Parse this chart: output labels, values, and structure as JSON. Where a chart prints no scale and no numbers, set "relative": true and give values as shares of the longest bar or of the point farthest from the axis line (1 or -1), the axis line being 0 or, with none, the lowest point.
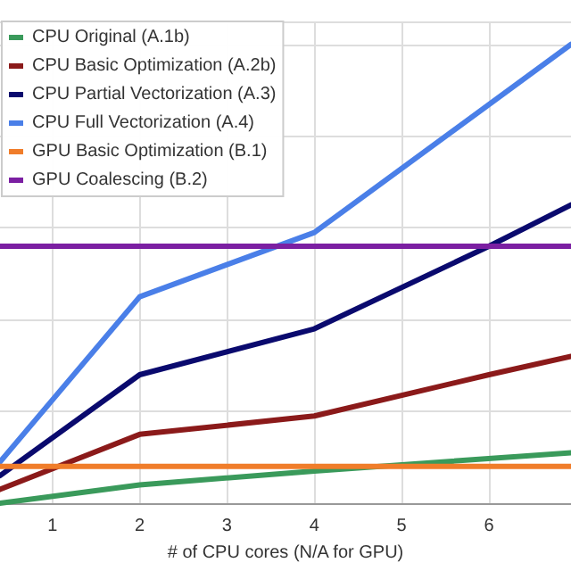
{
  "chart_data": {
    "type": "line",
    "xlabel": "# of CPU cores (N/A for GPU)",
    "relative": true,
    "xlim": [
      0.4,
      6.94
    ],
    "xticks": [
      1,
      2,
      3,
      4,
      5,
      6
    ],
    "grid": true,
    "legend": "top left",
    "marker": "none",
    "line_style": "solid",
    "series": [
      {
        "name": "CPU Original (A.1b)",
        "color": "#3a9a5b",
        "x": [
          0.4,
          2,
          4,
          6.94
        ],
        "values": [
          0,
          0.04,
          0.07,
          0.11
        ]
      },
      {
        "name": "CPU Basic Optimization (A.2b)",
        "color": "#8b1a1a",
        "x": [
          0.4,
          2,
          4,
          6,
          6.94
        ],
        "values": [
          0.03,
          0.15,
          0.19,
          0.28,
          0.32
        ]
      },
      {
        "name": "CPU Partial Vectorization (A.3)",
        "color": "#0a0a6e",
        "x": [
          0.4,
          2,
          4,
          6,
          6.94
        ],
        "values": [
          0.06,
          0.28,
          0.38,
          0.56,
          0.65
        ]
      },
      {
        "name": "CPU Full Vectorization (A.4)",
        "color": "#4a7fe8",
        "x": [
          0.4,
          2,
          4,
          6.94
        ],
        "values": [
          0.09,
          0.45,
          0.59,
          1
        ]
      },
      {
        "name": "GPU Basic Optimization (B.1)",
        "color": "#f07d2a",
        "x": [
          0.4,
          6.94
        ],
        "values": [
          0.08,
          0.08
        ]
      },
      {
        "name": "GPU Coalescing (B.2)",
        "color": "#7b1fa2",
        "x": [
          0.4,
          6.94
        ],
        "values": [
          0.56,
          0.56
        ]
      }
    ]
  }
}
